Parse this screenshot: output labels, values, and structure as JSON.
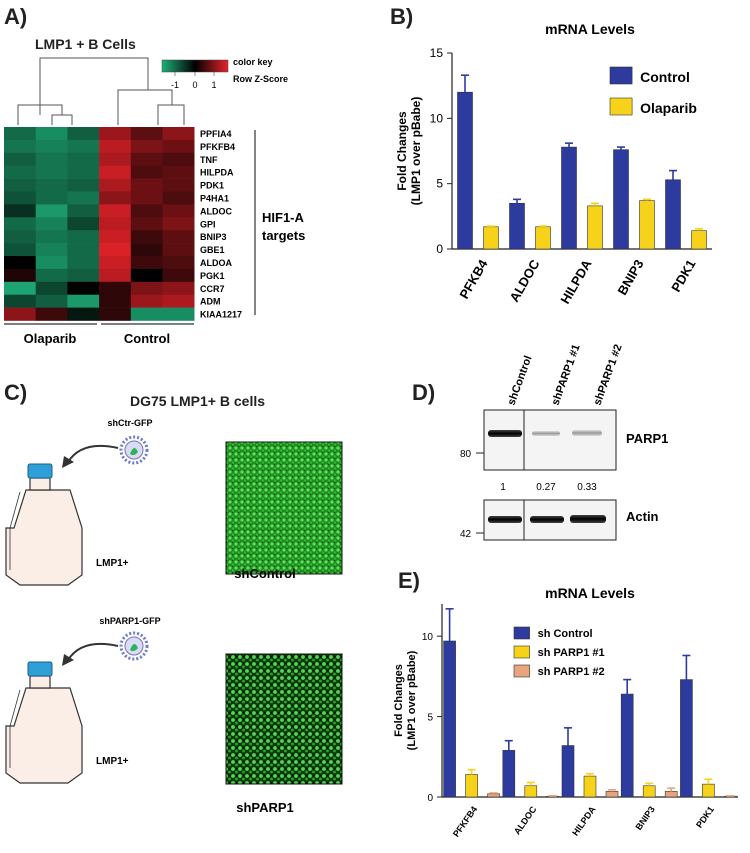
{
  "panel_letters": {
    "a": "A)",
    "b": "B)",
    "c": "C)",
    "d": "D)",
    "e": "E)"
  },
  "colors": {
    "blue": "#2e3b9e",
    "yellow": "#f7d21a",
    "orange": "#e8a47c",
    "heat_low": "#1fb07a",
    "heat_mid": "#000000",
    "heat_high": "#e8232a"
  },
  "panel_a": {
    "title": "LMP1 + B Cells",
    "color_key_label": "color key",
    "color_key_sublabel": "Row Z-Score",
    "color_key_ticks": [
      "-1",
      "0",
      "1"
    ],
    "group_left": "Olaparib",
    "group_right": "Control",
    "targets_line1": "HIF1-A",
    "targets_line2": "targets"
  },
  "panel_c": {
    "title": "DG75 LMP1+  B cells",
    "virus_top": "shCtr-GFP",
    "virus_bottom": "shPARP1-GFP",
    "flask_label_top": "LMP1+",
    "flask_label_bottom": "LMP1+",
    "image_top_caption": "shControl",
    "image_bottom_caption": "shPARP1"
  },
  "panel_d": {
    "lanes": [
      "shControl",
      "shPARP1 #1",
      "shPARP1 #2"
    ],
    "blot_top_label": "PARP1",
    "blot_bottom_label": "Actin",
    "marker_top": "80",
    "marker_bottom": "42",
    "quantification": [
      "1",
      "0.27",
      "0.33"
    ]
  },
  "chart_data": [
    {
      "type": "heatmap",
      "panel": "A",
      "title": "LMP1 + B Cells",
      "rows": [
        "PPFIA4",
        "PFKFB4",
        "TNF",
        "HILPDA",
        "PDK1",
        "P4HA1",
        "ALDOC",
        "GPI",
        "BNIP3",
        "GBE1",
        "ALDOA",
        "PGK1",
        "CCR7",
        "ADM",
        "KIAA1217"
      ],
      "column_groups": [
        "Olaparib",
        "Olaparib",
        "Olaparib",
        "Control",
        "Control",
        "Control"
      ],
      "values": [
        [
          -0.9,
          -1.2,
          -0.8,
          1.0,
          0.6,
          0.9
        ],
        [
          -1.0,
          -1.1,
          -1.0,
          1.2,
          0.8,
          0.7
        ],
        [
          -0.8,
          -1.0,
          -0.9,
          1.1,
          0.6,
          0.5
        ],
        [
          -0.9,
          -1.0,
          -0.9,
          1.3,
          0.5,
          0.6
        ],
        [
          -0.8,
          -0.9,
          -0.8,
          1.1,
          0.7,
          0.6
        ],
        [
          -0.7,
          -0.9,
          -1.0,
          0.9,
          0.7,
          0.5
        ],
        [
          -0.4,
          -1.3,
          -0.8,
          1.3,
          0.5,
          0.7
        ],
        [
          -0.9,
          -1.1,
          -0.6,
          1.2,
          0.6,
          0.8
        ],
        [
          -0.8,
          -1.0,
          -0.9,
          1.3,
          0.4,
          0.6
        ],
        [
          -0.7,
          -1.1,
          -0.9,
          1.4,
          0.3,
          0.6
        ],
        [
          0.0,
          -1.2,
          -0.9,
          1.3,
          0.4,
          0.5
        ],
        [
          0.2,
          -0.9,
          -0.8,
          1.2,
          0.0,
          0.4
        ],
        [
          -1.4,
          -0.6,
          0.0,
          0.3,
          0.8,
          0.9
        ],
        [
          -0.6,
          -0.8,
          -1.3,
          0.3,
          1.0,
          1.1
        ],
        [
          0.9,
          0.4,
          -0.2,
          0.3,
          -1.2,
          -1.2
        ]
      ],
      "color_key": "Row Z-Score",
      "color_key_ticks": [
        -1,
        0,
        1
      ]
    },
    {
      "type": "bar",
      "panel": "B",
      "title": "mRNA Levels",
      "ylabel": "Fold Changes (LMP1 over pBabe)",
      "ylabel_line1": "Fold Changes",
      "ylabel_line2": "(LMP1 over pBabe)",
      "categories": [
        "PFKB4",
        "ALDOC",
        "HILPDA",
        "BNIP3",
        "PDK1"
      ],
      "series": [
        {
          "name": "Control",
          "color": "#2e3b9e",
          "values": [
            12.0,
            3.5,
            7.8,
            7.6,
            5.3
          ],
          "errors": [
            1.3,
            0.3,
            0.3,
            0.2,
            0.7
          ]
        },
        {
          "name": "Olaparib",
          "color": "#f7d21a",
          "values": [
            1.7,
            1.7,
            3.3,
            3.7,
            1.4
          ],
          "errors": [
            0.05,
            0.05,
            0.2,
            0.1,
            0.15
          ]
        }
      ],
      "ylim": [
        0,
        15
      ],
      "yticks": [
        0,
        5,
        10,
        15
      ],
      "legend_position": "top-right"
    },
    {
      "type": "bar",
      "panel": "E",
      "title": "mRNA Levels",
      "ylabel": "Fold Changes (LMP1 over pBabe)",
      "ylabel_line1": "Fold Changes",
      "ylabel_line2": "(LMP1 over pBabe)",
      "categories": [
        "PFKFB4",
        "ALDOC",
        "HILPDA",
        "BNIP3",
        "PDK1"
      ],
      "series": [
        {
          "name": "sh Control",
          "color": "#2e3b9e",
          "values": [
            9.7,
            2.9,
            3.2,
            6.4,
            7.3
          ],
          "errors": [
            2.0,
            0.6,
            1.1,
            0.9,
            1.5
          ]
        },
        {
          "name": "sh PARP1 #1",
          "color": "#f7d21a",
          "values": [
            1.4,
            0.7,
            1.3,
            0.7,
            0.8
          ],
          "errors": [
            0.3,
            0.2,
            0.15,
            0.15,
            0.3
          ]
        },
        {
          "name": "sh PARP1 #2",
          "color": "#e8a47c",
          "values": [
            0.2,
            0.05,
            0.35,
            0.35,
            0.05
          ],
          "errors": [
            0.05,
            0.02,
            0.1,
            0.2,
            0.02
          ]
        }
      ],
      "ylim": [
        0,
        12
      ],
      "yticks": [
        0,
        5,
        10
      ],
      "legend_position": "top-right"
    }
  ]
}
